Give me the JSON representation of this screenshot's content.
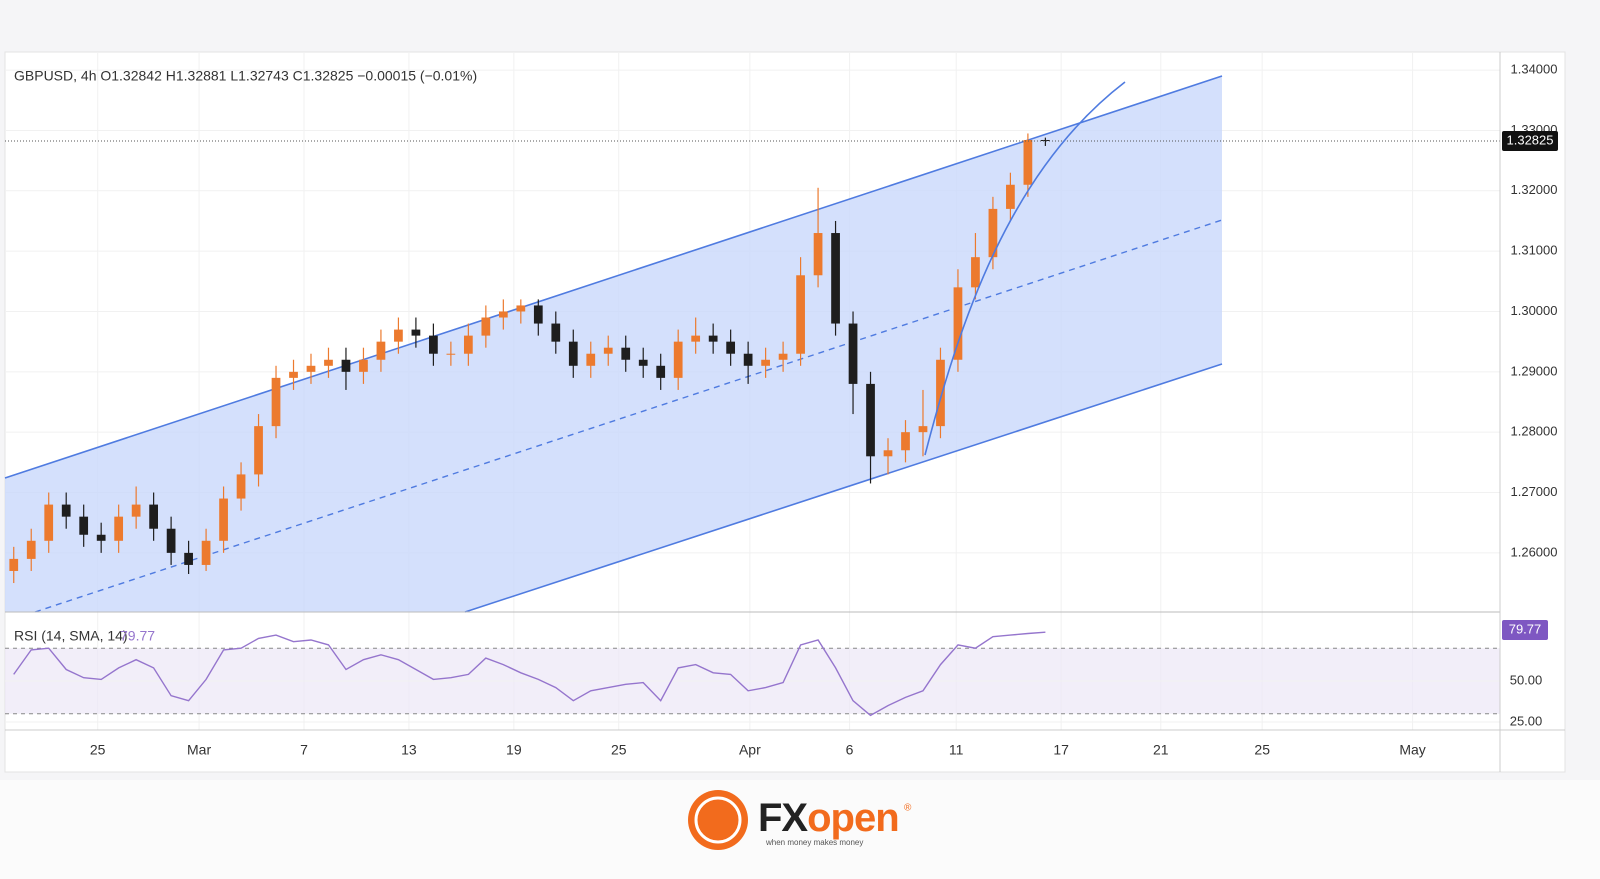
{
  "chart_data": [
    {
      "type": "candlestick",
      "title": "GBPUSD, 4h  O1.32842  H1.32881  L1.32743  C1.32825  −0.00015 (−0.01%)",
      "x": [
        0,
        1,
        2,
        3,
        4,
        5,
        6,
        7,
        8,
        9,
        10,
        11,
        12,
        13,
        14,
        15,
        16,
        17,
        18,
        19,
        20,
        21,
        22,
        23,
        24,
        25,
        26,
        27,
        28,
        29,
        30,
        31,
        32,
        33,
        34,
        35,
        36,
        37,
        38,
        39,
        40,
        41,
        42,
        43,
        44,
        45,
        46,
        47,
        48,
        49,
        50,
        51,
        52,
        53,
        54,
        55,
        56,
        57,
        58,
        59
      ],
      "open": [
        1.257,
        1.259,
        1.262,
        1.268,
        1.266,
        1.263,
        1.262,
        1.266,
        1.268,
        1.264,
        1.26,
        1.258,
        1.262,
        1.269,
        1.273,
        1.281,
        1.289,
        1.29,
        1.291,
        1.292,
        1.29,
        1.292,
        1.295,
        1.297,
        1.296,
        1.293,
        1.293,
        1.296,
        1.299,
        1.3,
        1.301,
        1.298,
        1.295,
        1.291,
        1.293,
        1.294,
        1.292,
        1.291,
        1.289,
        1.295,
        1.296,
        1.295,
        1.293,
        1.291,
        1.292,
        1.293,
        1.306,
        1.313,
        1.298,
        1.288,
        1.276,
        1.277,
        1.28,
        1.281,
        1.292,
        1.304,
        1.309,
        1.317,
        1.321,
        1.32842
      ],
      "high": [
        1.261,
        1.264,
        1.27,
        1.27,
        1.268,
        1.265,
        1.268,
        1.271,
        1.27,
        1.266,
        1.262,
        1.264,
        1.271,
        1.275,
        1.283,
        1.291,
        1.292,
        1.293,
        1.294,
        1.294,
        1.294,
        1.297,
        1.299,
        1.299,
        1.298,
        1.295,
        1.298,
        1.301,
        1.302,
        1.302,
        1.302,
        1.3,
        1.297,
        1.295,
        1.296,
        1.296,
        1.294,
        1.293,
        1.297,
        1.299,
        1.298,
        1.297,
        1.295,
        1.294,
        1.295,
        1.309,
        1.3205,
        1.315,
        1.3,
        1.29,
        1.279,
        1.282,
        1.287,
        1.294,
        1.307,
        1.313,
        1.319,
        1.323,
        1.3295,
        1.32881
      ],
      "low": [
        1.255,
        1.257,
        1.26,
        1.264,
        1.261,
        1.26,
        1.26,
        1.264,
        1.262,
        1.258,
        1.2565,
        1.257,
        1.26,
        1.267,
        1.271,
        1.279,
        1.287,
        1.288,
        1.289,
        1.287,
        1.288,
        1.29,
        1.293,
        1.294,
        1.291,
        1.291,
        1.291,
        1.294,
        1.297,
        1.298,
        1.296,
        1.293,
        1.289,
        1.289,
        1.291,
        1.29,
        1.289,
        1.287,
        1.287,
        1.293,
        1.293,
        1.291,
        1.288,
        1.289,
        1.29,
        1.291,
        1.304,
        1.296,
        1.283,
        1.2715,
        1.273,
        1.275,
        1.276,
        1.279,
        1.29,
        1.302,
        1.307,
        1.315,
        1.319,
        1.32743
      ],
      "close": [
        1.259,
        1.262,
        1.268,
        1.266,
        1.263,
        1.262,
        1.266,
        1.268,
        1.264,
        1.26,
        1.258,
        1.262,
        1.269,
        1.273,
        1.281,
        1.289,
        1.29,
        1.291,
        1.292,
        1.29,
        1.292,
        1.295,
        1.297,
        1.296,
        1.293,
        1.293,
        1.296,
        1.299,
        1.3,
        1.301,
        1.298,
        1.295,
        1.291,
        1.293,
        1.294,
        1.292,
        1.291,
        1.289,
        1.295,
        1.296,
        1.295,
        1.293,
        1.291,
        1.292,
        1.293,
        1.306,
        1.313,
        1.298,
        1.288,
        1.276,
        1.277,
        1.28,
        1.281,
        1.292,
        1.304,
        1.309,
        1.317,
        1.321,
        1.32842,
        1.32825
      ],
      "up_color": "#ec7a2e",
      "down_color": "#1e1e1e",
      "last_price": 1.32825,
      "xlim": [
        -0.5,
        85
      ],
      "xticks": [
        {
          "value": 4.8,
          "label": "25"
        },
        {
          "value": 10.6,
          "label": "Mar"
        },
        {
          "value": 16.6,
          "label": "7"
        },
        {
          "value": 22.6,
          "label": "13"
        },
        {
          "value": 28.6,
          "label": "19"
        },
        {
          "value": 34.6,
          "label": "25"
        },
        {
          "value": 42.1,
          "label": "Apr"
        },
        {
          "value": 47.8,
          "label": "6"
        },
        {
          "value": 53.9,
          "label": "11"
        },
        {
          "value": 59.9,
          "label": "17"
        },
        {
          "value": 65.6,
          "label": "21"
        },
        {
          "value": 71.4,
          "label": "25"
        },
        {
          "value": 80.0,
          "label": "May"
        }
      ],
      "ylim": [
        1.2502,
        1.343
      ],
      "yticks": [
        {
          "value": 1.26,
          "label": "1.26000"
        },
        {
          "value": 1.27,
          "label": "1.27000"
        },
        {
          "value": 1.28,
          "label": "1.28000"
        },
        {
          "value": 1.29,
          "label": "1.29000"
        },
        {
          "value": 1.3,
          "label": "1.30000"
        },
        {
          "value": 1.31,
          "label": "1.31000"
        },
        {
          "value": 1.32,
          "label": "1.32000"
        },
        {
          "value": 1.33,
          "label": "1.33000"
        },
        {
          "value": 1.34,
          "label": "1.34000"
        }
      ],
      "grid": true
    },
    {
      "type": "line",
      "title": "RSI (14, SMA, 14)",
      "last_value": 79.77,
      "color": "#9575cd",
      "x": [
        0,
        1,
        2,
        3,
        4,
        5,
        6,
        7,
        8,
        9,
        10,
        11,
        12,
        13,
        14,
        15,
        16,
        17,
        18,
        19,
        20,
        21,
        22,
        23,
        24,
        25,
        26,
        27,
        28,
        29,
        30,
        31,
        32,
        33,
        34,
        35,
        36,
        37,
        38,
        39,
        40,
        41,
        42,
        43,
        44,
        45,
        46,
        47,
        48,
        49,
        50,
        51,
        52,
        53,
        54,
        55,
        56,
        57,
        58,
        59
      ],
      "values": [
        54,
        69,
        70,
        57,
        52,
        51,
        58,
        63,
        58,
        41,
        38,
        51,
        69,
        70,
        76,
        78,
        74,
        75,
        72,
        57,
        63,
        66,
        63,
        57,
        51,
        52,
        54,
        64,
        60,
        55,
        51,
        46,
        38,
        44,
        46,
        48,
        49,
        38,
        58,
        60,
        55,
        54,
        44,
        46,
        49,
        72,
        75,
        58,
        38,
        29,
        35,
        40,
        44,
        60,
        72,
        70,
        77,
        78,
        79,
        79.77
      ],
      "bands": [
        30,
        70
      ],
      "xlim": [
        -0.5,
        85
      ],
      "ylim": [
        20.1,
        92.1
      ],
      "yticks": [
        {
          "value": 50,
          "label": "50.00"
        },
        {
          "value": 25,
          "label": "25.00"
        }
      ]
    }
  ],
  "logo": {
    "brand_fx": "FX",
    "brand_open": "open",
    "registered": "®",
    "tagline": "when money makes money"
  }
}
